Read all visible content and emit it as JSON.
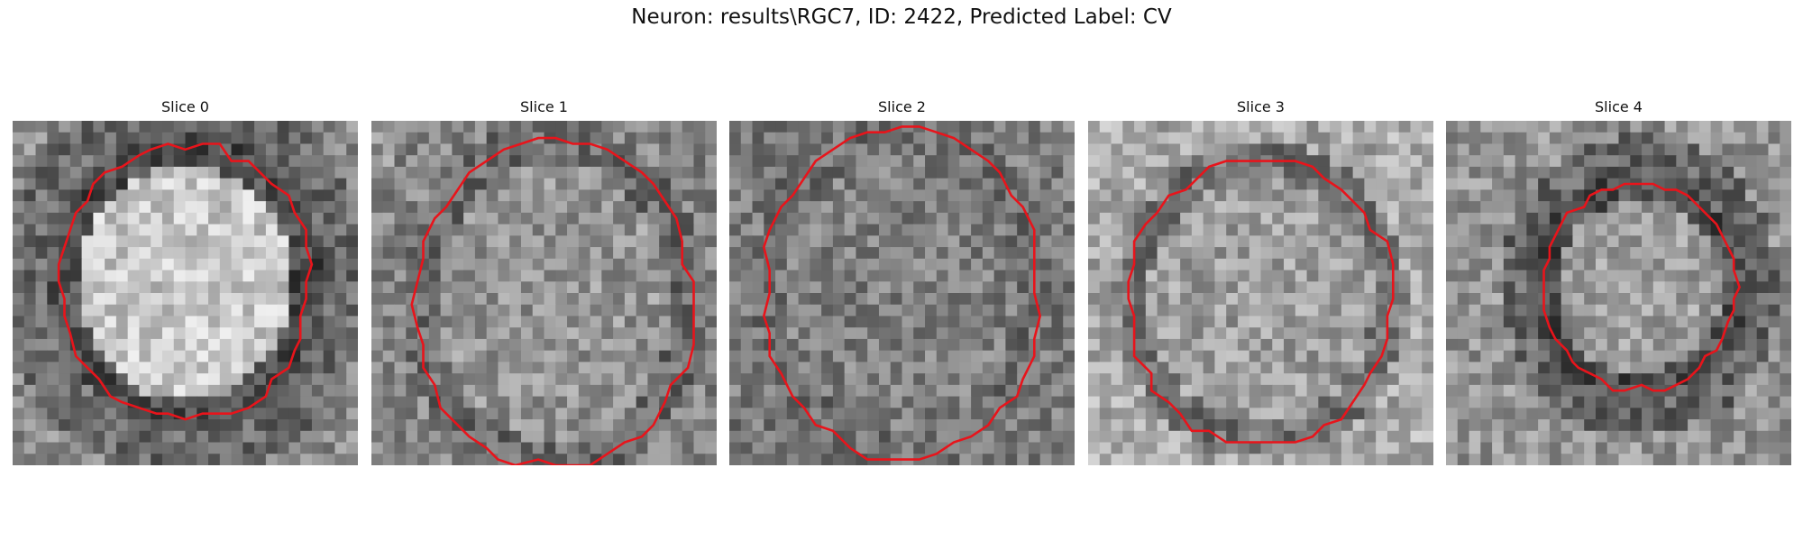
{
  "figure": {
    "title": "Neuron: results\\RGC7, ID: 2422, Predicted Label: CV",
    "contour_color": "#e8141b",
    "colormap": "gray"
  },
  "panels": [
    {
      "label": "Slice 0",
      "seed": 11,
      "center": [
        0.5,
        0.47
      ],
      "radius": [
        0.36,
        0.4
      ],
      "inner": 0.78,
      "outer": 0.42,
      "ring": 0.3,
      "bg": 0.55
    },
    {
      "label": "Slice 1",
      "seed": 23,
      "center": [
        0.53,
        0.53
      ],
      "radius": [
        0.4,
        0.48
      ],
      "inner": 0.58,
      "outer": 0.52,
      "ring": 0.42,
      "bg": 0.6
    },
    {
      "label": "Slice 2",
      "seed": 37,
      "center": [
        0.5,
        0.5
      ],
      "radius": [
        0.4,
        0.48
      ],
      "inner": 0.5,
      "outer": 0.48,
      "ring": 0.44,
      "bg": 0.5
    },
    {
      "label": "Slice 3",
      "seed": 41,
      "center": [
        0.5,
        0.52
      ],
      "radius": [
        0.38,
        0.42
      ],
      "inner": 0.62,
      "outer": 0.66,
      "ring": 0.45,
      "bg": 0.68
    },
    {
      "label": "Slice 4",
      "seed": 59,
      "center": [
        0.56,
        0.48
      ],
      "radius": [
        0.28,
        0.3
      ],
      "inner": 0.62,
      "outer": 0.4,
      "ring": 0.3,
      "bg": 0.58
    }
  ]
}
